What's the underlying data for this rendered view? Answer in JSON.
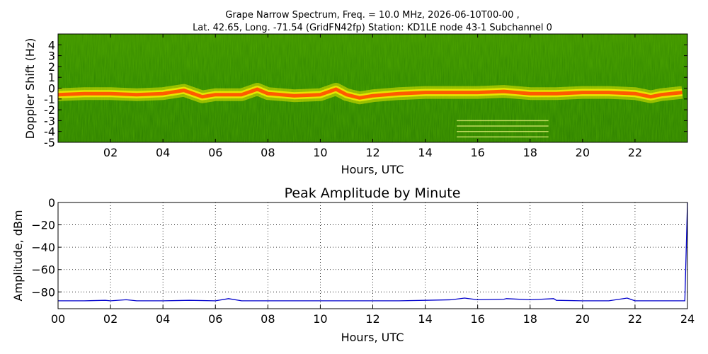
{
  "figure": {
    "title_line1": "Grape Narrow Spectrum, Freq. = 10.0 MHz, 2026-06-10T00-00 ,",
    "title_line2": "Lat.  42.65, Long. -71.54 (GridFN42fp) Station: KD1LE node 43-1 Subchannel 0"
  },
  "chart_data": [
    {
      "type": "heatmap",
      "name": "spectrogram",
      "xlabel": "Hours, UTC",
      "ylabel": "Doppler Shift (Hz)",
      "xlim": [
        0,
        24
      ],
      "ylim": [
        -5,
        5
      ],
      "x_ticks": [
        "02",
        "04",
        "06",
        "08",
        "10",
        "12",
        "14",
        "16",
        "18",
        "20",
        "22"
      ],
      "x_tick_values": [
        2,
        4,
        6,
        8,
        10,
        12,
        14,
        16,
        18,
        20,
        22
      ],
      "y_ticks": [
        "-5",
        "-4",
        "-3",
        "-2",
        "-1",
        "0",
        "1",
        "2",
        "3",
        "4"
      ],
      "y_tick_values": [
        -5,
        -4,
        -3,
        -2,
        -1,
        0,
        1,
        2,
        3,
        4
      ],
      "colors": {
        "background": "#2f8a00",
        "band_edge": "#e6e600",
        "band_core": "#ff5a00"
      },
      "trace": {
        "hours": [
          0,
          1,
          2,
          3,
          4,
          4.8,
          5.5,
          6,
          7,
          7.6,
          8,
          9,
          10,
          10.6,
          11,
          11.5,
          12,
          13,
          14,
          15,
          16,
          17,
          18,
          19,
          20,
          21,
          22,
          22.6,
          23,
          23.8
        ],
        "doppler": [
          -0.6,
          -0.5,
          -0.5,
          -0.6,
          -0.5,
          -0.2,
          -0.8,
          -0.6,
          -0.6,
          -0.1,
          -0.5,
          -0.7,
          -0.6,
          -0.1,
          -0.6,
          -0.9,
          -0.7,
          -0.5,
          -0.4,
          -0.4,
          -0.4,
          -0.3,
          -0.5,
          -0.5,
          -0.4,
          -0.4,
          -0.5,
          -0.8,
          -0.6,
          -0.4
        ]
      },
      "artifact_lines": {
        "hours": [
          15.2,
          18.7
        ],
        "doppler": [
          -3.0,
          -3.5,
          -4.0,
          -4.5
        ]
      }
    },
    {
      "type": "line",
      "name": "peak-amplitude",
      "title": "Peak Amplitude by Minute",
      "xlabel": "Hours, UTC",
      "ylabel": "Amplitude, dBm",
      "xlim": [
        0,
        24
      ],
      "ylim": [
        -95,
        0
      ],
      "grid": true,
      "x_ticks": [
        "00",
        "02",
        "04",
        "06",
        "08",
        "10",
        "12",
        "14",
        "16",
        "18",
        "20",
        "22",
        "24"
      ],
      "x_tick_values": [
        0,
        2,
        4,
        6,
        8,
        10,
        12,
        14,
        16,
        18,
        20,
        22,
        24
      ],
      "y_ticks": [
        "0",
        "−20",
        "−40",
        "−60",
        "−80"
      ],
      "y_tick_values": [
        0,
        -20,
        -40,
        -60,
        -80
      ],
      "color": "#0000cc",
      "series": [
        {
          "x": [
            0,
            0.5,
            1,
            1.8,
            2,
            2.6,
            3,
            4,
            5,
            6,
            6.5,
            7,
            8,
            9,
            10,
            11,
            12,
            13,
            14,
            15,
            15.5,
            16,
            17,
            17.1,
            18,
            18.9,
            19,
            20,
            21,
            21.7,
            22,
            23,
            23.9,
            24
          ],
          "y": [
            -88,
            -88,
            -88,
            -87.5,
            -88,
            -87,
            -88,
            -88,
            -87.5,
            -88,
            -86,
            -88,
            -88,
            -88,
            -88,
            -88,
            -88,
            -88,
            -87.5,
            -87,
            -85.5,
            -87,
            -86.5,
            -86,
            -87,
            -86,
            -87.5,
            -88,
            -88,
            -85.5,
            -88,
            -88,
            -88,
            0
          ]
        }
      ]
    }
  ]
}
